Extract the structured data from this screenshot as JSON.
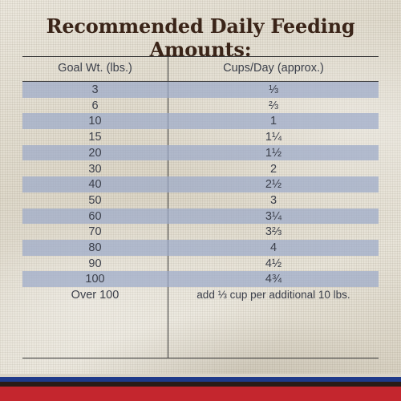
{
  "title": "Recommended Daily Feeding Amounts:",
  "headers": {
    "weight": "Goal Wt. (lbs.)",
    "cups": "Cups/Day (approx.)"
  },
  "rows": [
    {
      "weight": "3",
      "cups": "⅓"
    },
    {
      "weight": "6",
      "cups": "⅔"
    },
    {
      "weight": "10",
      "cups": "1"
    },
    {
      "weight": "15",
      "cups": "1¼"
    },
    {
      "weight": "20",
      "cups": "1½"
    },
    {
      "weight": "30",
      "cups": "2"
    },
    {
      "weight": "40",
      "cups": "2½"
    },
    {
      "weight": "50",
      "cups": "3"
    },
    {
      "weight": "60",
      "cups": "3¼"
    },
    {
      "weight": "70",
      "cups": "3⅔"
    },
    {
      "weight": "80",
      "cups": "4"
    },
    {
      "weight": "90",
      "cups": "4½"
    },
    {
      "weight": "100",
      "cups": "4¾"
    },
    {
      "weight": "Over 100",
      "cups": "add ⅓ cup per additional 10 lbs."
    }
  ],
  "colors": {
    "title": "#3a2418",
    "band": "#9caac9",
    "stripe_top": "#1f3a8a",
    "stripe_mid": "#2a1b16",
    "stripe_bottom": "#c4262e"
  }
}
